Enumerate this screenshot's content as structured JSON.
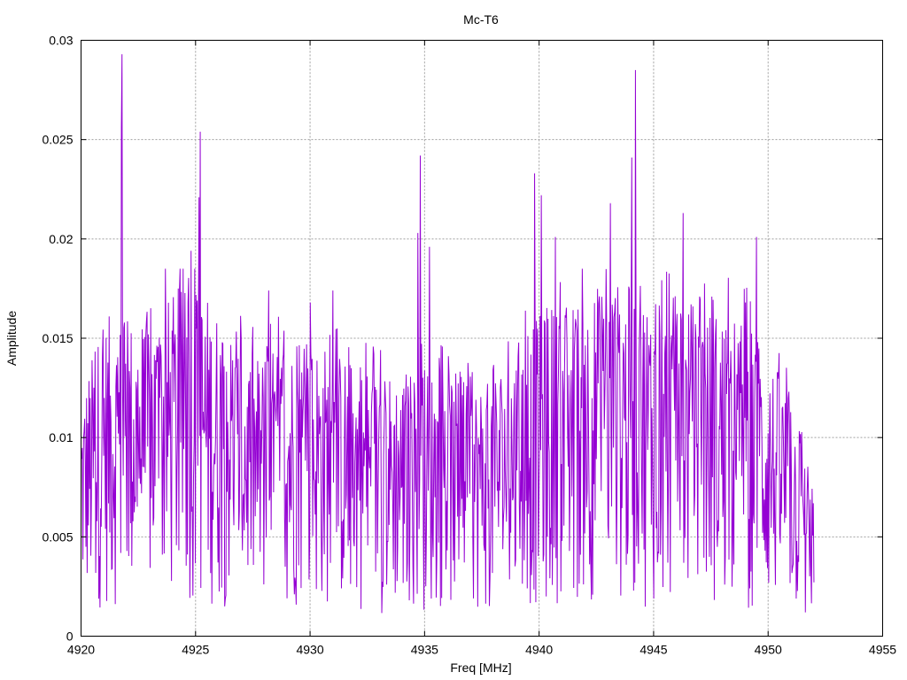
{
  "chart_data": {
    "type": "line",
    "title": "Mc-T6",
    "xlabel": "Freq [MHz]",
    "ylabel": "Amplitude",
    "xlim": [
      4920,
      4955
    ],
    "ylim": [
      0,
      0.03
    ],
    "x_ticks": [
      4920,
      4925,
      4930,
      4935,
      4940,
      4945,
      4950,
      4955
    ],
    "x_tick_labels": [
      "4920",
      "4925",
      "4930",
      "4935",
      "4940",
      "4945",
      "4950",
      "4955"
    ],
    "y_ticks": [
      0,
      0.005,
      0.01,
      0.015,
      0.02,
      0.025,
      0.03
    ],
    "y_tick_labels": [
      "0",
      "0.005",
      "0.01",
      "0.015",
      "0.02",
      "0.025",
      "0.03"
    ],
    "grid": true,
    "series": [
      {
        "color": "#9400d3",
        "x_range": [
          4920.0,
          4952.0
        ],
        "samples": 1200,
        "peaks": [
          {
            "x": 4921.8,
            "y": 0.0293
          },
          {
            "x": 4921.75,
            "y": 0.0256
          },
          {
            "x": 4925.2,
            "y": 0.0254
          },
          {
            "x": 4925.15,
            "y": 0.0221
          },
          {
            "x": 4924.8,
            "y": 0.0194
          },
          {
            "x": 4934.8,
            "y": 0.0242
          },
          {
            "x": 4934.7,
            "y": 0.0203
          },
          {
            "x": 4935.2,
            "y": 0.0196
          },
          {
            "x": 4939.8,
            "y": 0.0233
          },
          {
            "x": 4940.1,
            "y": 0.0222
          },
          {
            "x": 4940.7,
            "y": 0.0201
          },
          {
            "x": 4944.2,
            "y": 0.0285
          },
          {
            "x": 4944.05,
            "y": 0.0241
          },
          {
            "x": 4943.1,
            "y": 0.0218
          },
          {
            "x": 4946.3,
            "y": 0.0213
          },
          {
            "x": 4949.5,
            "y": 0.0201
          },
          {
            "x": 4930.0,
            "y": 0.0168
          },
          {
            "x": 4931.0,
            "y": 0.0174
          },
          {
            "x": 4928.2,
            "y": 0.0174
          }
        ],
        "envelope": [
          {
            "x": 4920.0,
            "y": 0.0065
          },
          {
            "x": 4921.0,
            "y": 0.0085
          },
          {
            "x": 4922.5,
            "y": 0.0085
          },
          {
            "x": 4925.0,
            "y": 0.0095
          },
          {
            "x": 4927.5,
            "y": 0.0075
          },
          {
            "x": 4930.0,
            "y": 0.008
          },
          {
            "x": 4933.0,
            "y": 0.007
          },
          {
            "x": 4935.0,
            "y": 0.0072
          },
          {
            "x": 4937.5,
            "y": 0.0068
          },
          {
            "x": 4940.0,
            "y": 0.0085
          },
          {
            "x": 4943.0,
            "y": 0.0095
          },
          {
            "x": 4946.0,
            "y": 0.009
          },
          {
            "x": 4949.0,
            "y": 0.0085
          },
          {
            "x": 4951.0,
            "y": 0.0065
          },
          {
            "x": 4952.0,
            "y": 0.0035
          }
        ]
      }
    ]
  }
}
